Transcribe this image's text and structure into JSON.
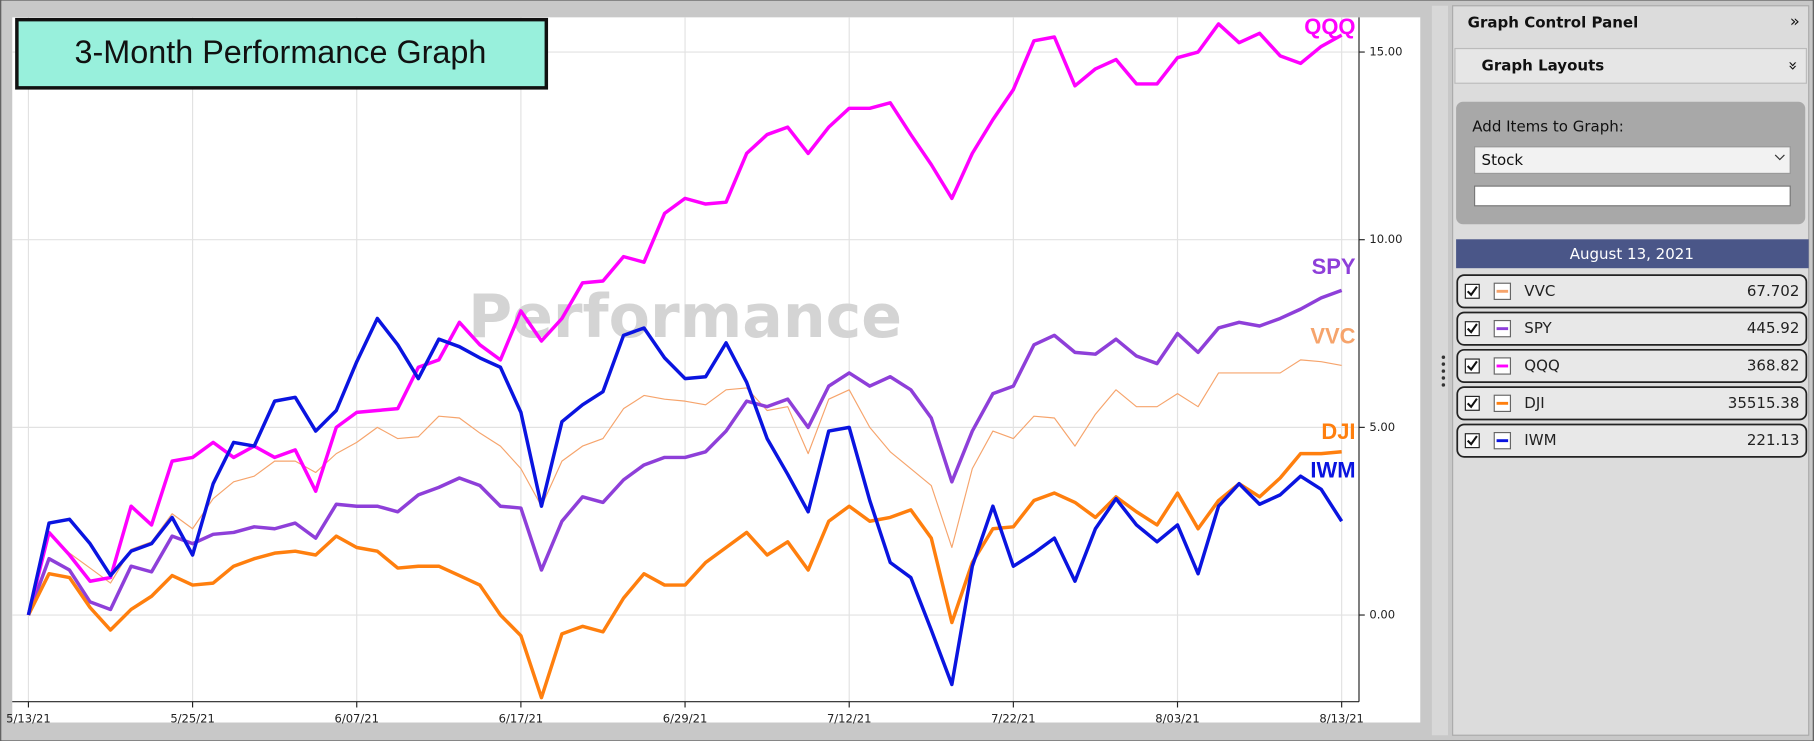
{
  "chart_data": {
    "type": "line",
    "title": "3-Month Performance Graph",
    "watermark": "Performance",
    "categories": [
      "5/13/21",
      null,
      null,
      null,
      null,
      null,
      null,
      null,
      "5/25/21",
      null,
      null,
      null,
      null,
      null,
      null,
      null,
      "6/07/21",
      null,
      null,
      null,
      null,
      null,
      null,
      null,
      "6/17/21",
      null,
      null,
      null,
      null,
      null,
      null,
      null,
      "6/29/21",
      null,
      null,
      null,
      null,
      null,
      null,
      null,
      "7/12/21",
      null,
      null,
      null,
      null,
      null,
      null,
      null,
      "7/22/21",
      null,
      null,
      null,
      null,
      null,
      null,
      null,
      "8/03/21",
      null,
      null,
      null,
      null,
      null,
      null,
      null,
      "8/13/21"
    ],
    "ylim": [
      -2.3,
      15.9
    ],
    "yticks": [
      {
        "value": 0,
        "label": "0.00"
      },
      {
        "value": 5,
        "label": "5.00"
      },
      {
        "value": 10,
        "label": "10.00"
      },
      {
        "value": 15,
        "label": "15.00"
      }
    ],
    "grid": true,
    "series": [
      {
        "name": "VVC",
        "color": "#f6a46c",
        "values": [
          0,
          2.2,
          1.65,
          1.25,
          0.85,
          1.75,
          1.95,
          2.7,
          2.3,
          3.1,
          3.55,
          3.7,
          4.1,
          4.1,
          3.8,
          4.3,
          4.6,
          5.0,
          4.7,
          4.75,
          5.3,
          5.25,
          4.85,
          4.5,
          3.9,
          2.9,
          4.1,
          4.5,
          4.7,
          5.5,
          5.85,
          5.75,
          5.7,
          5.6,
          6.0,
          6.05,
          5.45,
          5.55,
          4.3,
          5.75,
          6.0,
          5.0,
          4.35,
          3.9,
          3.45,
          1.8,
          3.9,
          4.9,
          4.7,
          5.3,
          5.25,
          4.5,
          5.35,
          6.0,
          5.55,
          5.55,
          5.9,
          5.55,
          6.45,
          6.45,
          6.45,
          6.45,
          6.8,
          6.75,
          6.65
        ]
      },
      {
        "name": "SPY",
        "color": "#8e3fd9",
        "values": [
          0,
          1.5,
          1.2,
          0.35,
          0.15,
          1.3,
          1.15,
          2.1,
          1.9,
          2.15,
          2.2,
          2.35,
          2.3,
          2.45,
          2.05,
          2.95,
          2.9,
          2.9,
          2.75,
          3.2,
          3.4,
          3.65,
          3.45,
          2.9,
          2.85,
          1.2,
          2.5,
          3.15,
          3.0,
          3.6,
          4.0,
          4.2,
          4.2,
          4.35,
          4.9,
          5.7,
          5.55,
          5.75,
          5.0,
          6.1,
          6.45,
          6.1,
          6.35,
          6.0,
          5.25,
          3.55,
          4.9,
          5.9,
          6.1,
          7.2,
          7.45,
          7.0,
          6.95,
          7.35,
          6.9,
          6.7,
          7.5,
          7.0,
          7.65,
          7.8,
          7.7,
          7.9,
          8.15,
          8.45,
          8.65
        ]
      },
      {
        "name": "QQQ",
        "color": "#ff00ff",
        "values": [
          0,
          2.2,
          1.6,
          0.9,
          1.0,
          2.9,
          2.4,
          4.1,
          4.2,
          4.6,
          4.2,
          4.5,
          4.2,
          4.4,
          3.3,
          5.0,
          5.4,
          5.45,
          5.5,
          6.6,
          6.8,
          7.8,
          7.2,
          6.8,
          8.1,
          7.3,
          7.9,
          8.85,
          8.9,
          9.55,
          9.4,
          10.7,
          11.1,
          10.95,
          11.0,
          12.3,
          12.8,
          13.0,
          12.3,
          13.0,
          13.5,
          13.5,
          13.65,
          12.8,
          12.0,
          11.1,
          12.3,
          13.2,
          14.0,
          15.3,
          15.4,
          14.1,
          14.55,
          14.8,
          14.15,
          14.15,
          14.85,
          15.0,
          15.75,
          15.25,
          15.5,
          14.9,
          14.7,
          15.15,
          15.45
        ]
      },
      {
        "name": "DJI",
        "color": "#ff7f0e",
        "values": [
          0,
          1.1,
          1.0,
          0.2,
          -0.4,
          0.15,
          0.5,
          1.05,
          0.8,
          0.85,
          1.3,
          1.5,
          1.65,
          1.7,
          1.6,
          2.1,
          1.8,
          1.7,
          1.25,
          1.3,
          1.3,
          1.05,
          0.8,
          0,
          -0.55,
          -2.2,
          -0.5,
          -0.3,
          -0.45,
          0.45,
          1.1,
          0.8,
          0.8,
          1.4,
          1.8,
          2.2,
          1.6,
          1.95,
          1.2,
          2.5,
          2.9,
          2.5,
          2.6,
          2.8,
          2.05,
          -0.2,
          1.4,
          2.3,
          2.35,
          3.05,
          3.25,
          3.0,
          2.6,
          3.15,
          2.75,
          2.4,
          3.25,
          2.3,
          3.05,
          3.5,
          3.15,
          3.65,
          4.3,
          4.3,
          4.35
        ]
      },
      {
        "name": "IWM",
        "color": "#0a14e0",
        "values": [
          0,
          2.45,
          2.55,
          1.9,
          1.05,
          1.7,
          1.9,
          2.6,
          1.6,
          3.5,
          4.6,
          4.5,
          5.7,
          5.8,
          4.9,
          5.45,
          6.75,
          7.9,
          7.2,
          6.3,
          7.35,
          7.15,
          6.85,
          6.6,
          5.4,
          2.9,
          5.15,
          5.6,
          5.95,
          7.45,
          7.65,
          6.85,
          6.3,
          6.35,
          7.25,
          6.2,
          4.7,
          3.75,
          2.75,
          4.9,
          5.0,
          3.05,
          1.4,
          1.0,
          -0.4,
          -1.85,
          1.3,
          2.9,
          1.3,
          1.65,
          2.05,
          0.9,
          2.3,
          3.1,
          2.4,
          1.95,
          2.4,
          1.1,
          2.9,
          3.5,
          2.95,
          3.2,
          3.7,
          3.35,
          2.5
        ]
      }
    ]
  },
  "panel": {
    "title": "Graph Control Panel",
    "collapse_icon": "»",
    "section": "Graph Layouts",
    "section_icon": "»",
    "add_label": "Add Items to Graph:",
    "select_value": "Stock",
    "date": "August 13, 2021",
    "last_values": [
      67.702,
      445.92,
      368.82,
      35515.38,
      221.13
    ]
  }
}
